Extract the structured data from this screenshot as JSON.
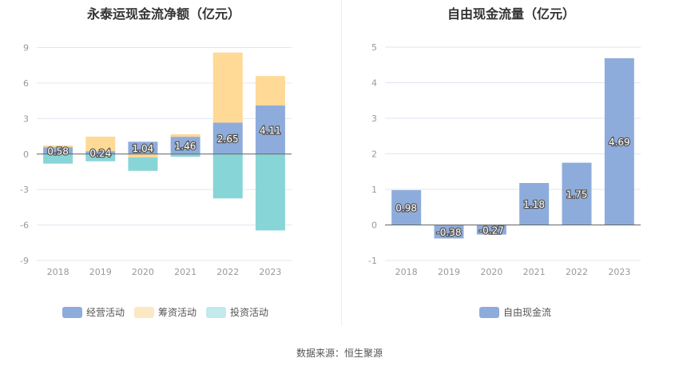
{
  "chart_data": [
    {
      "type": "bar",
      "stacked": true,
      "title": "永泰运现金流净额（亿元）",
      "categories": [
        "2018",
        "2019",
        "2020",
        "2021",
        "2022",
        "2023"
      ],
      "ylim": [
        -9,
        9
      ],
      "yticks": [
        9,
        6,
        3,
        0,
        -3,
        -6,
        -9
      ],
      "grid": true,
      "legend": "bottom",
      "series": [
        {
          "name": "经营活动",
          "color": "#8eacdb",
          "legend_color": "#8eacdb",
          "values": [
            0.58,
            0.24,
            1.04,
            1.46,
            2.65,
            4.11
          ],
          "labels": [
            "0.58",
            "0.24",
            "1.04",
            "1.46",
            "2.65",
            "4.11"
          ]
        },
        {
          "name": "筹资活动",
          "color": "#ffd996",
          "legend_color": "#fde8c4",
          "values": [
            0.14,
            1.23,
            -0.29,
            0.21,
            5.93,
            2.48
          ]
        },
        {
          "name": "投资活动",
          "color": "#88d5d8",
          "legend_color": "#c2e9eb",
          "values": [
            -0.81,
            -0.61,
            -1.13,
            -0.23,
            -3.75,
            -6.46
          ]
        }
      ]
    },
    {
      "type": "bar",
      "title": "自由现金流量（亿元）",
      "categories": [
        "2018",
        "2019",
        "2020",
        "2021",
        "2022",
        "2023"
      ],
      "ylim": [
        -1,
        5
      ],
      "yticks": [
        5,
        4,
        3,
        2,
        1,
        0,
        -1
      ],
      "grid": true,
      "legend": "bottom",
      "series": [
        {
          "name": "自由现金流",
          "color": "#8eacdb",
          "values": [
            0.98,
            -0.38,
            -0.27,
            1.18,
            1.75,
            4.69
          ],
          "labels": [
            "0.98",
            "-0.38",
            "-0.27",
            "1.18",
            "1.75",
            "4.69"
          ]
        }
      ]
    }
  ],
  "source": "数据来源：恒生聚源"
}
